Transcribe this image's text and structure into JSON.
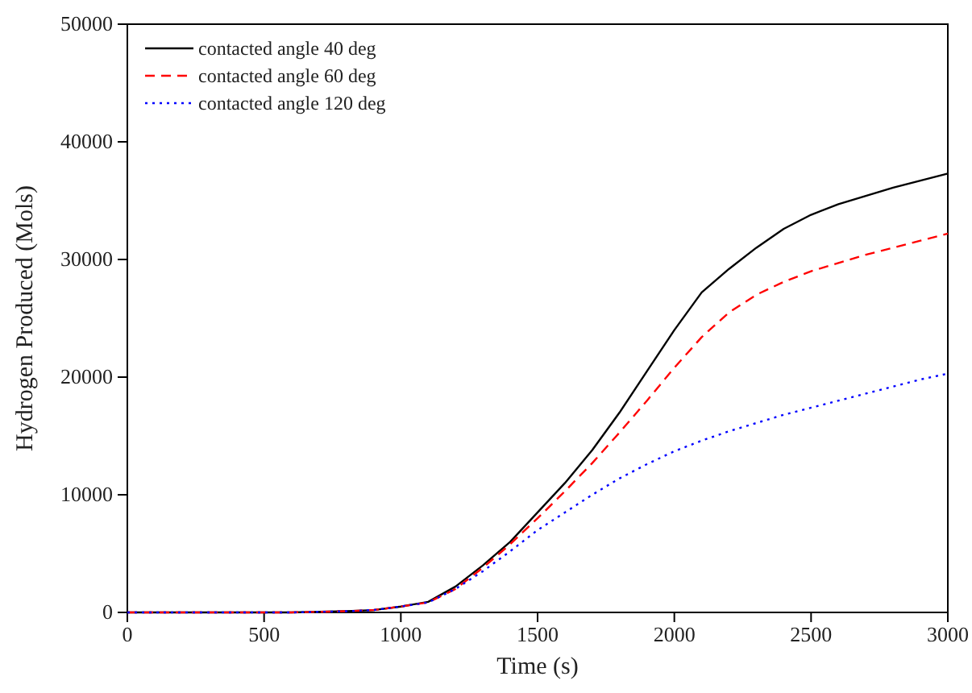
{
  "chart_data": {
    "type": "line",
    "xlabel": "Time (s)",
    "ylabel": "Hydrogen Produced (Mols)",
    "x": [
      0,
      200,
      400,
      600,
      700,
      800,
      900,
      1000,
      1100,
      1200,
      1300,
      1400,
      1500,
      1600,
      1700,
      1800,
      1900,
      2000,
      2100,
      2200,
      2300,
      2400,
      2500,
      2600,
      2700,
      2800,
      2900,
      3000
    ],
    "series": [
      {
        "name": "contacted angle 40 deg",
        "color": "#000000",
        "line_style": "solid",
        "values": [
          0,
          0,
          0,
          0,
          50,
          100,
          200,
          500,
          900,
          2200,
          4000,
          6000,
          8500,
          11000,
          13800,
          17000,
          20500,
          24000,
          27200,
          29200,
          31000,
          32600,
          33800,
          34700,
          35400,
          36100,
          36700,
          37300
        ]
      },
      {
        "name": "contacted angle 60 deg",
        "color": "#ff0000",
        "line_style": "dashed",
        "values": [
          0,
          0,
          0,
          0,
          50,
          100,
          200,
          500,
          850,
          2000,
          3800,
          5800,
          8000,
          10300,
          12700,
          15300,
          18000,
          20800,
          23400,
          25500,
          27000,
          28100,
          29000,
          29700,
          30400,
          31000,
          31600,
          32200
        ]
      },
      {
        "name": "contacted angle 120 deg",
        "color": "#0000ff",
        "line_style": "dotted",
        "values": [
          0,
          0,
          0,
          0,
          50,
          100,
          200,
          500,
          850,
          2000,
          3500,
          5200,
          7000,
          8500,
          10000,
          11400,
          12600,
          13700,
          14600,
          15400,
          16100,
          16800,
          17400,
          18000,
          18600,
          19200,
          19800,
          20300
        ]
      }
    ],
    "xlim": [
      0,
      3000
    ],
    "xticks": [
      0,
      500,
      1000,
      1500,
      2000,
      2500,
      3000
    ],
    "ylim": [
      0,
      50000
    ],
    "yticks": [
      0,
      10000,
      20000,
      30000,
      40000,
      50000
    ],
    "grid": false,
    "legend": "top left",
    "marker": "none"
  }
}
